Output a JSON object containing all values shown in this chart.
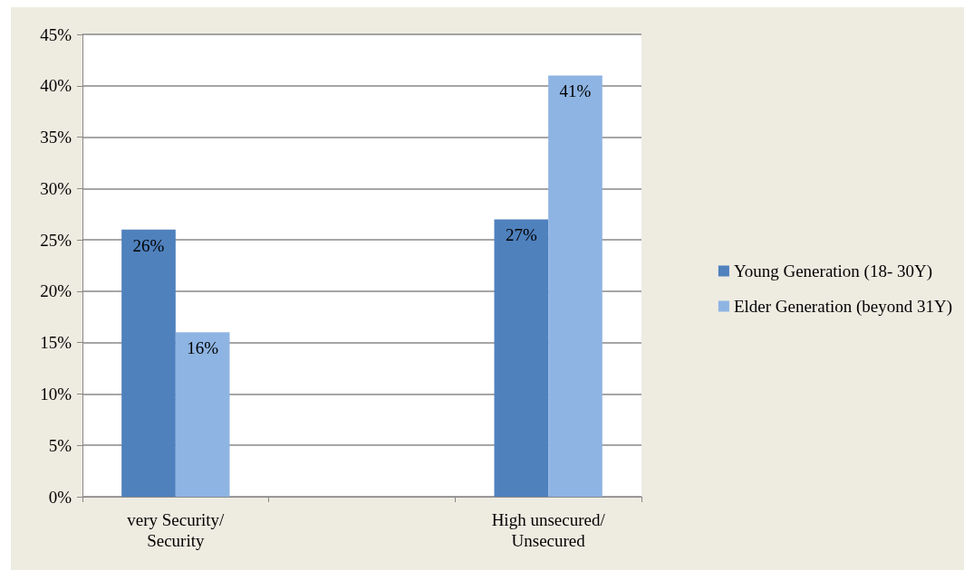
{
  "chart_data": {
    "type": "bar",
    "categories": [
      "very Security/\nSecurity",
      null,
      "High unsecured/\nUnsecured"
    ],
    "series": [
      {
        "name": "Young Generation (18- 30Y)",
        "color": "#4f81bd",
        "values": [
          26,
          null,
          27
        ],
        "value_labels": [
          "26%",
          null,
          "27%"
        ]
      },
      {
        "name": "Elder Generation (beyond 31Y)",
        "color": "#8eb4e3",
        "values": [
          16,
          null,
          41
        ],
        "value_labels": [
          "16%",
          null,
          "41%"
        ]
      }
    ],
    "ylim": [
      0,
      45
    ],
    "yticks": [
      {
        "value": 0,
        "label": "0%"
      },
      {
        "value": 5,
        "label": "5%"
      },
      {
        "value": 10,
        "label": "10%"
      },
      {
        "value": 15,
        "label": "15%"
      },
      {
        "value": 20,
        "label": "20%"
      },
      {
        "value": 25,
        "label": "25%"
      },
      {
        "value": 30,
        "label": "30%"
      },
      {
        "value": 35,
        "label": "35%"
      },
      {
        "value": 40,
        "label": "40%"
      },
      {
        "value": 45,
        "label": "45%"
      }
    ],
    "grid": "y",
    "legend": "right"
  }
}
